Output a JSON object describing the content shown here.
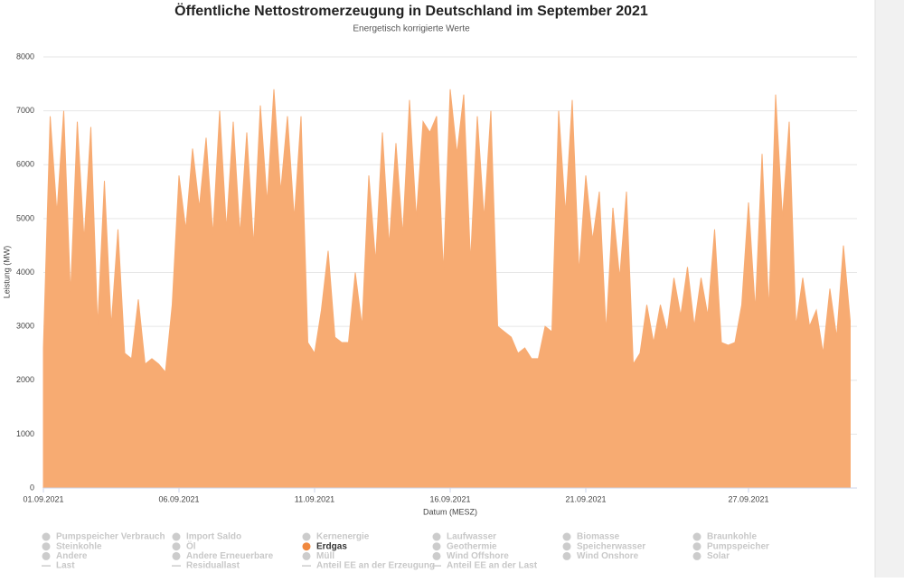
{
  "chart_data": {
    "type": "area",
    "title": "Öffentliche Nettostromerzeugung in Deutschland im September 2021",
    "subtitle": "Energetisch korrigierte Werte",
    "xlabel": "Datum (MESZ)",
    "ylabel": "Leistung (MW)",
    "ylim": [
      0,
      8000
    ],
    "yticks": [
      0,
      1000,
      2000,
      3000,
      4000,
      5000,
      6000,
      7000,
      8000
    ],
    "grid": true,
    "hidden_color": "#cccccc",
    "categories": [
      "01.09.2021",
      null,
      null,
      null,
      null,
      null,
      null,
      null,
      null,
      null,
      null,
      null,
      null,
      null,
      null,
      null,
      null,
      null,
      null,
      null,
      "06.09.2021",
      null,
      null,
      null,
      null,
      null,
      null,
      null,
      null,
      null,
      null,
      null,
      null,
      null,
      null,
      null,
      null,
      null,
      null,
      null,
      "11.09.2021",
      null,
      null,
      null,
      null,
      null,
      null,
      null,
      null,
      null,
      null,
      null,
      null,
      null,
      null,
      null,
      null,
      null,
      null,
      null,
      "16.09.2021",
      null,
      null,
      null,
      null,
      null,
      null,
      null,
      null,
      null,
      null,
      null,
      null,
      null,
      null,
      null,
      null,
      null,
      null,
      null,
      "21.09.2021",
      null,
      null,
      null,
      null,
      null,
      null,
      null,
      null,
      null,
      null,
      null,
      null,
      null,
      null,
      null,
      null,
      null,
      null,
      null,
      null,
      null,
      null,
      null,
      "27.09.2021",
      null,
      null,
      null,
      null,
      null,
      null,
      null,
      null,
      null,
      null,
      null,
      null,
      null,
      null,
      null
    ],
    "series": [
      {
        "name": "Pumpspeicher Verbrauch",
        "visible": false,
        "symbol": "circle"
      },
      {
        "name": "Import Saldo",
        "visible": false,
        "symbol": "circle"
      },
      {
        "name": "Kernenergie",
        "visible": false,
        "symbol": "circle"
      },
      {
        "name": "Laufwasser",
        "visible": false,
        "symbol": "circle"
      },
      {
        "name": "Biomasse",
        "visible": false,
        "symbol": "circle"
      },
      {
        "name": "Braunkohle",
        "visible": false,
        "symbol": "circle"
      },
      {
        "name": "Steinkohle",
        "visible": false,
        "symbol": "circle"
      },
      {
        "name": "Öl",
        "visible": false,
        "symbol": "circle"
      },
      {
        "name": "Erdgas",
        "visible": true,
        "symbol": "circle",
        "color": "#f7ab72",
        "legend_color": "#f0883e",
        "values": [
          2600,
          6900,
          5100,
          7000,
          3600,
          6800,
          4600,
          6700,
          3000,
          5700,
          3000,
          4800,
          2500,
          2400,
          3500,
          2300,
          2400,
          2300,
          2150,
          3400,
          5800,
          4800,
          6300,
          5200,
          6500,
          4700,
          7000,
          4800,
          6800,
          4700,
          6600,
          4500,
          7100,
          5300,
          7400,
          5500,
          6900,
          5000,
          6900,
          2700,
          2500,
          3300,
          4400,
          2800,
          2700,
          2700,
          4000,
          3000,
          5800,
          4200,
          6600,
          4500,
          6400,
          4700,
          7200,
          5000,
          6800,
          6600,
          6900,
          4000,
          7400,
          6200,
          7300,
          4200,
          6900,
          5000,
          7000,
          3000,
          2900,
          2800,
          2500,
          2600,
          2400,
          2400,
          3000,
          2900,
          7000,
          5100,
          7200,
          4000,
          5800,
          4600,
          5500,
          2900,
          5200,
          3900,
          5500,
          2300,
          2500,
          3400,
          2700,
          3400,
          2900,
          3900,
          3200,
          4100,
          3000,
          3900,
          3200,
          4800,
          2700,
          2650,
          2700,
          3400,
          5300,
          3300,
          6200,
          3300,
          7300,
          5000,
          6800,
          3000,
          3900,
          3000,
          3300,
          2500,
          3700,
          2800,
          4500,
          3100
        ]
      },
      {
        "name": "Geothermie",
        "visible": false,
        "symbol": "circle"
      },
      {
        "name": "Speicherwasser",
        "visible": false,
        "symbol": "circle"
      },
      {
        "name": "Pumpspeicher",
        "visible": false,
        "symbol": "circle"
      },
      {
        "name": "Andere",
        "visible": false,
        "symbol": "circle"
      },
      {
        "name": "Andere Erneuerbare",
        "visible": false,
        "symbol": "circle"
      },
      {
        "name": "Müll",
        "visible": false,
        "symbol": "circle"
      },
      {
        "name": "Wind Offshore",
        "visible": false,
        "symbol": "circle"
      },
      {
        "name": "Wind Onshore",
        "visible": false,
        "symbol": "circle"
      },
      {
        "name": "Solar",
        "visible": false,
        "symbol": "circle"
      },
      {
        "name": "Last",
        "visible": false,
        "symbol": "line"
      },
      {
        "name": "Residuallast",
        "visible": false,
        "symbol": "line"
      },
      {
        "name": "Anteil EE an der Erzeugung",
        "visible": false,
        "symbol": "line"
      },
      {
        "name": "Anteil EE an der Last",
        "visible": false,
        "symbol": "line"
      }
    ]
  }
}
